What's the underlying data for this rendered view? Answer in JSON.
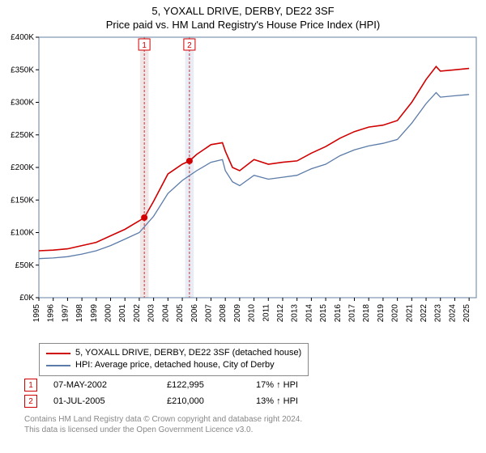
{
  "title_line1": "5, YOXALL DRIVE, DERBY, DE22 3SF",
  "title_line2": "Price paid vs. HM Land Registry's House Price Index (HPI)",
  "chart": {
    "type": "line",
    "background_color": "#ffffff",
    "grid_on": false,
    "plot_border_color": "#6080a0",
    "ylim": [
      0,
      400000
    ],
    "ytick_step": 50000,
    "ytick_labels": [
      "£0K",
      "£50K",
      "£100K",
      "£150K",
      "£200K",
      "£250K",
      "£300K",
      "£350K",
      "£400K"
    ],
    "xlim": [
      1995,
      2025.5
    ],
    "xtick_step": 1,
    "xtick_labels": [
      "1995",
      "1996",
      "1997",
      "1998",
      "1999",
      "2000",
      "2001",
      "2002",
      "2003",
      "2004",
      "2005",
      "2006",
      "2007",
      "2008",
      "2009",
      "2010",
      "2011",
      "2012",
      "2013",
      "2014",
      "2015",
      "2016",
      "2017",
      "2018",
      "2019",
      "2020",
      "2021",
      "2022",
      "2023",
      "2024",
      "2025"
    ],
    "sale_bands": [
      {
        "x": 2002.35,
        "label": "1",
        "band_color": "#f0e8e8",
        "line_color": "#d00000"
      },
      {
        "x": 2005.5,
        "label": "2",
        "band_color": "#e8ecf4",
        "line_color": "#d00000"
      }
    ],
    "series": [
      {
        "name": "price_paid",
        "color": "#d00000",
        "line_width": 1.6,
        "points": [
          [
            1995,
            72000
          ],
          [
            1996,
            73000
          ],
          [
            1997,
            75000
          ],
          [
            1998,
            80000
          ],
          [
            1999,
            85000
          ],
          [
            2000,
            95000
          ],
          [
            2001,
            105000
          ],
          [
            2002,
            118000
          ],
          [
            2002.35,
            122995
          ],
          [
            2003,
            148000
          ],
          [
            2004,
            190000
          ],
          [
            2005,
            205000
          ],
          [
            2005.5,
            210000
          ],
          [
            2006,
            220000
          ],
          [
            2007,
            235000
          ],
          [
            2007.8,
            238000
          ],
          [
            2008,
            225000
          ],
          [
            2008.5,
            200000
          ],
          [
            2009,
            195000
          ],
          [
            2010,
            212000
          ],
          [
            2011,
            205000
          ],
          [
            2012,
            208000
          ],
          [
            2013,
            210000
          ],
          [
            2014,
            222000
          ],
          [
            2015,
            232000
          ],
          [
            2016,
            245000
          ],
          [
            2017,
            255000
          ],
          [
            2018,
            262000
          ],
          [
            2019,
            265000
          ],
          [
            2020,
            272000
          ],
          [
            2021,
            300000
          ],
          [
            2022,
            335000
          ],
          [
            2022.7,
            355000
          ],
          [
            2023,
            348000
          ],
          [
            2024,
            350000
          ],
          [
            2025,
            352000
          ]
        ]
      },
      {
        "name": "hpi",
        "color": "#5b7ba8",
        "line_width": 1.3,
        "points": [
          [
            1995,
            60000
          ],
          [
            1996,
            61000
          ],
          [
            1997,
            63000
          ],
          [
            1998,
            67000
          ],
          [
            1999,
            72000
          ],
          [
            2000,
            80000
          ],
          [
            2001,
            90000
          ],
          [
            2002,
            100000
          ],
          [
            2003,
            125000
          ],
          [
            2004,
            160000
          ],
          [
            2005,
            180000
          ],
          [
            2006,
            195000
          ],
          [
            2007,
            208000
          ],
          [
            2007.8,
            212000
          ],
          [
            2008,
            195000
          ],
          [
            2008.5,
            178000
          ],
          [
            2009,
            172000
          ],
          [
            2010,
            188000
          ],
          [
            2011,
            182000
          ],
          [
            2012,
            185000
          ],
          [
            2013,
            188000
          ],
          [
            2014,
            198000
          ],
          [
            2015,
            205000
          ],
          [
            2016,
            218000
          ],
          [
            2017,
            227000
          ],
          [
            2018,
            233000
          ],
          [
            2019,
            237000
          ],
          [
            2020,
            243000
          ],
          [
            2021,
            268000
          ],
          [
            2022,
            298000
          ],
          [
            2022.7,
            315000
          ],
          [
            2023,
            308000
          ],
          [
            2024,
            310000
          ],
          [
            2025,
            312000
          ]
        ]
      }
    ],
    "sale_markers": [
      {
        "x": 2002.35,
        "y": 122995,
        "color": "#d00000",
        "radius": 4
      },
      {
        "x": 2005.5,
        "y": 210000,
        "color": "#d00000",
        "radius": 4
      }
    ]
  },
  "legend": {
    "items": [
      {
        "color": "#d00000",
        "label": "5, YOXALL DRIVE, DERBY, DE22 3SF (detached house)"
      },
      {
        "color": "#5b7ba8",
        "label": "HPI: Average price, detached house, City of Derby"
      }
    ]
  },
  "sales_table": {
    "rows": [
      {
        "badge": "1",
        "date": "07-MAY-2002",
        "price": "£122,995",
        "pct": "17% ↑ HPI"
      },
      {
        "badge": "2",
        "date": "01-JUL-2005",
        "price": "£210,000",
        "pct": "13% ↑ HPI"
      }
    ]
  },
  "footer": {
    "line1": "Contains HM Land Registry data © Crown copyright and database right 2024.",
    "line2": "This data is licensed under the Open Government Licence v3.0."
  }
}
